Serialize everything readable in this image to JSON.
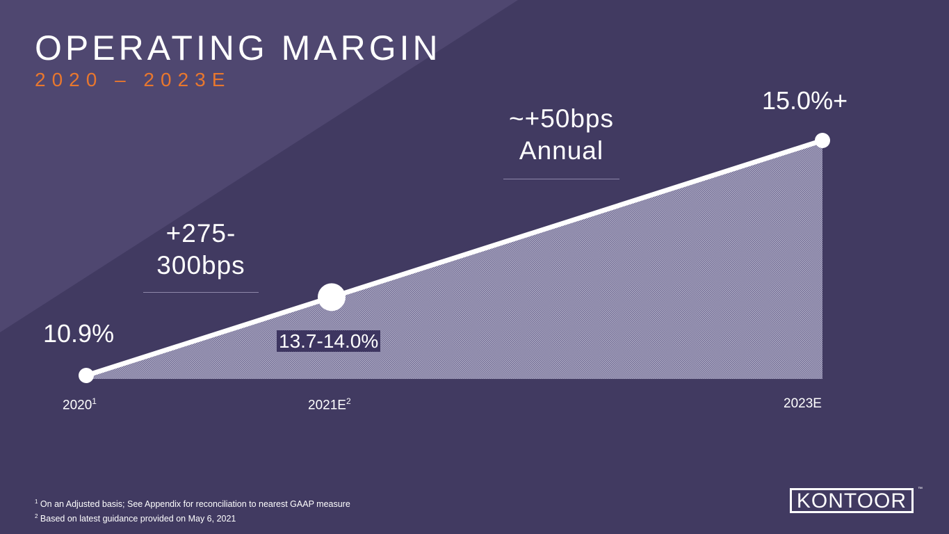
{
  "header": {
    "title": "OPERATING MARGIN",
    "subtitle": "2020 – 2023E"
  },
  "colors": {
    "background": "#413a61",
    "accent": "#e8772e",
    "fill": "#8f8aab",
    "line": "#ffffff"
  },
  "chart_data": {
    "type": "area",
    "title": "OPERATING MARGIN",
    "subtitle": "2020 – 2023E",
    "categories": [
      "2020",
      "2021E",
      "2023E"
    ],
    "x": [
      2020,
      2021,
      2023
    ],
    "category_superscripts": [
      "1",
      "2",
      ""
    ],
    "values": [
      10.9,
      13.85,
      15.0
    ],
    "data_labels": [
      "10.9%",
      "13.7-14.0%",
      "15.0%+"
    ],
    "annotations": [
      {
        "lines": [
          "+275-",
          "300bps"
        ],
        "between": [
          "2020",
          "2021E"
        ]
      },
      {
        "lines": [
          "~+50bps",
          "Annual"
        ],
        "between": [
          "2021E",
          "2023E"
        ]
      }
    ],
    "xlabel": "",
    "ylabel": "",
    "grid": false,
    "legend": "none"
  },
  "footnotes": [
    {
      "mark": "1",
      "text": " On an Adjusted basis; See Appendix for reconciliation to nearest GAAP measure"
    },
    {
      "mark": "2",
      "text": " Based on latest guidance provided on May 6, 2021"
    }
  ],
  "logo": {
    "text": "KONTOOR",
    "tm": "™"
  }
}
